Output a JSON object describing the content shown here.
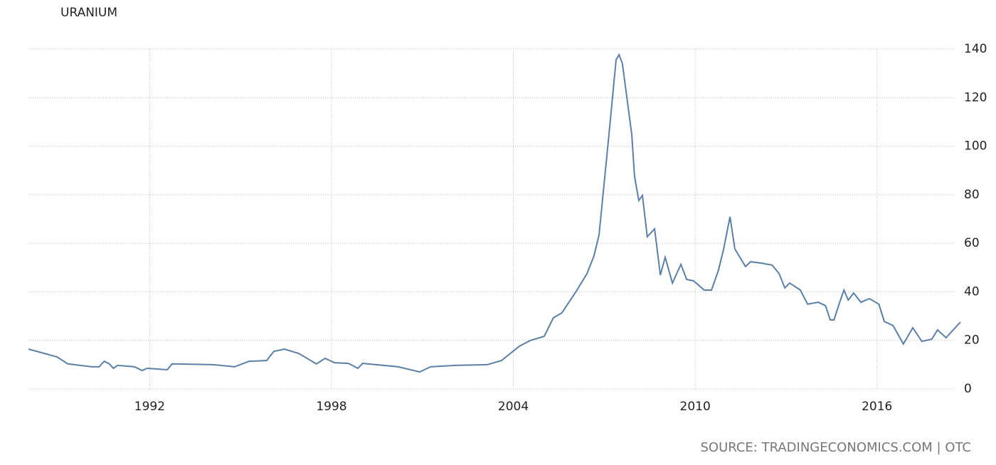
{
  "chart_data": {
    "type": "line",
    "title": "URANIUM",
    "source": "SOURCE: TRADINGECONOMICS.COM | OTC",
    "xlim": [
      1988,
      2018.8
    ],
    "xticks": [
      1992,
      1998,
      2004,
      2010,
      2016
    ],
    "ylim": [
      0,
      140
    ],
    "yticks": [
      0,
      20,
      40,
      60,
      80,
      100,
      120,
      140
    ],
    "grid": true,
    "series": [
      {
        "name": "Uranium",
        "color": "#5b7fa6",
        "x": [
          1988.0,
          1988.94,
          1989.3,
          1990.1,
          1990.33,
          1990.5,
          1990.67,
          1990.8,
          1990.94,
          1991.5,
          1991.75,
          1991.92,
          1992.58,
          1992.74,
          1994.1,
          1994.8,
          1995.28,
          1995.86,
          1996.1,
          1996.45,
          1996.92,
          1997.5,
          1997.79,
          1998.1,
          1998.56,
          1998.87,
          1999.03,
          2000.2,
          2000.91,
          2001.27,
          2002.08,
          2003.14,
          2003.61,
          2004.2,
          2004.55,
          2005.02,
          2005.32,
          2005.6,
          2006.07,
          2006.43,
          2006.66,
          2006.83,
          2007.13,
          2007.39,
          2007.49,
          2007.6,
          2007.91,
          2008.0,
          2008.14,
          2008.26,
          2008.42,
          2008.66,
          2008.85,
          2009.01,
          2009.25,
          2009.53,
          2009.72,
          2009.95,
          2010.3,
          2010.54,
          2010.77,
          2010.94,
          2011.15,
          2011.31,
          2011.66,
          2011.83,
          2012.19,
          2012.54,
          2012.77,
          2012.96,
          2013.12,
          2013.47,
          2013.71,
          2014.06,
          2014.3,
          2014.46,
          2014.58,
          2014.77,
          2014.91,
          2015.05,
          2015.23,
          2015.47,
          2015.75,
          2016.06,
          2016.24,
          2016.53,
          2016.87,
          2017.18,
          2017.48,
          2017.81,
          2018.0,
          2018.28,
          2018.75
        ],
        "values": [
          16.4,
          13.2,
          10.3,
          9.1,
          9.1,
          11.4,
          10.3,
          8.5,
          9.7,
          9.1,
          7.6,
          8.5,
          7.9,
          10.3,
          10.0,
          9.1,
          11.4,
          11.7,
          15.5,
          16.4,
          14.6,
          10.3,
          12.6,
          10.8,
          10.5,
          8.5,
          10.5,
          9.1,
          7.0,
          9.1,
          9.7,
          10.0,
          11.7,
          17.6,
          19.9,
          21.7,
          29.3,
          31.3,
          40.1,
          47.5,
          54.8,
          63.6,
          101.6,
          135.6,
          137.7,
          133.9,
          104.6,
          87.6,
          77.6,
          79.7,
          62.7,
          65.9,
          46.9,
          54.2,
          43.6,
          51.3,
          45.1,
          44.5,
          40.7,
          40.7,
          48.9,
          57.7,
          70.9,
          57.7,
          50.4,
          52.4,
          51.8,
          51.0,
          47.5,
          41.6,
          43.6,
          40.7,
          34.9,
          35.7,
          34.3,
          28.4,
          28.4,
          35.7,
          40.7,
          36.6,
          39.5,
          35.7,
          37.2,
          34.9,
          27.8,
          26.1,
          18.5,
          25.2,
          19.6,
          20.5,
          24.3,
          21.1,
          27.5
        ]
      }
    ]
  }
}
